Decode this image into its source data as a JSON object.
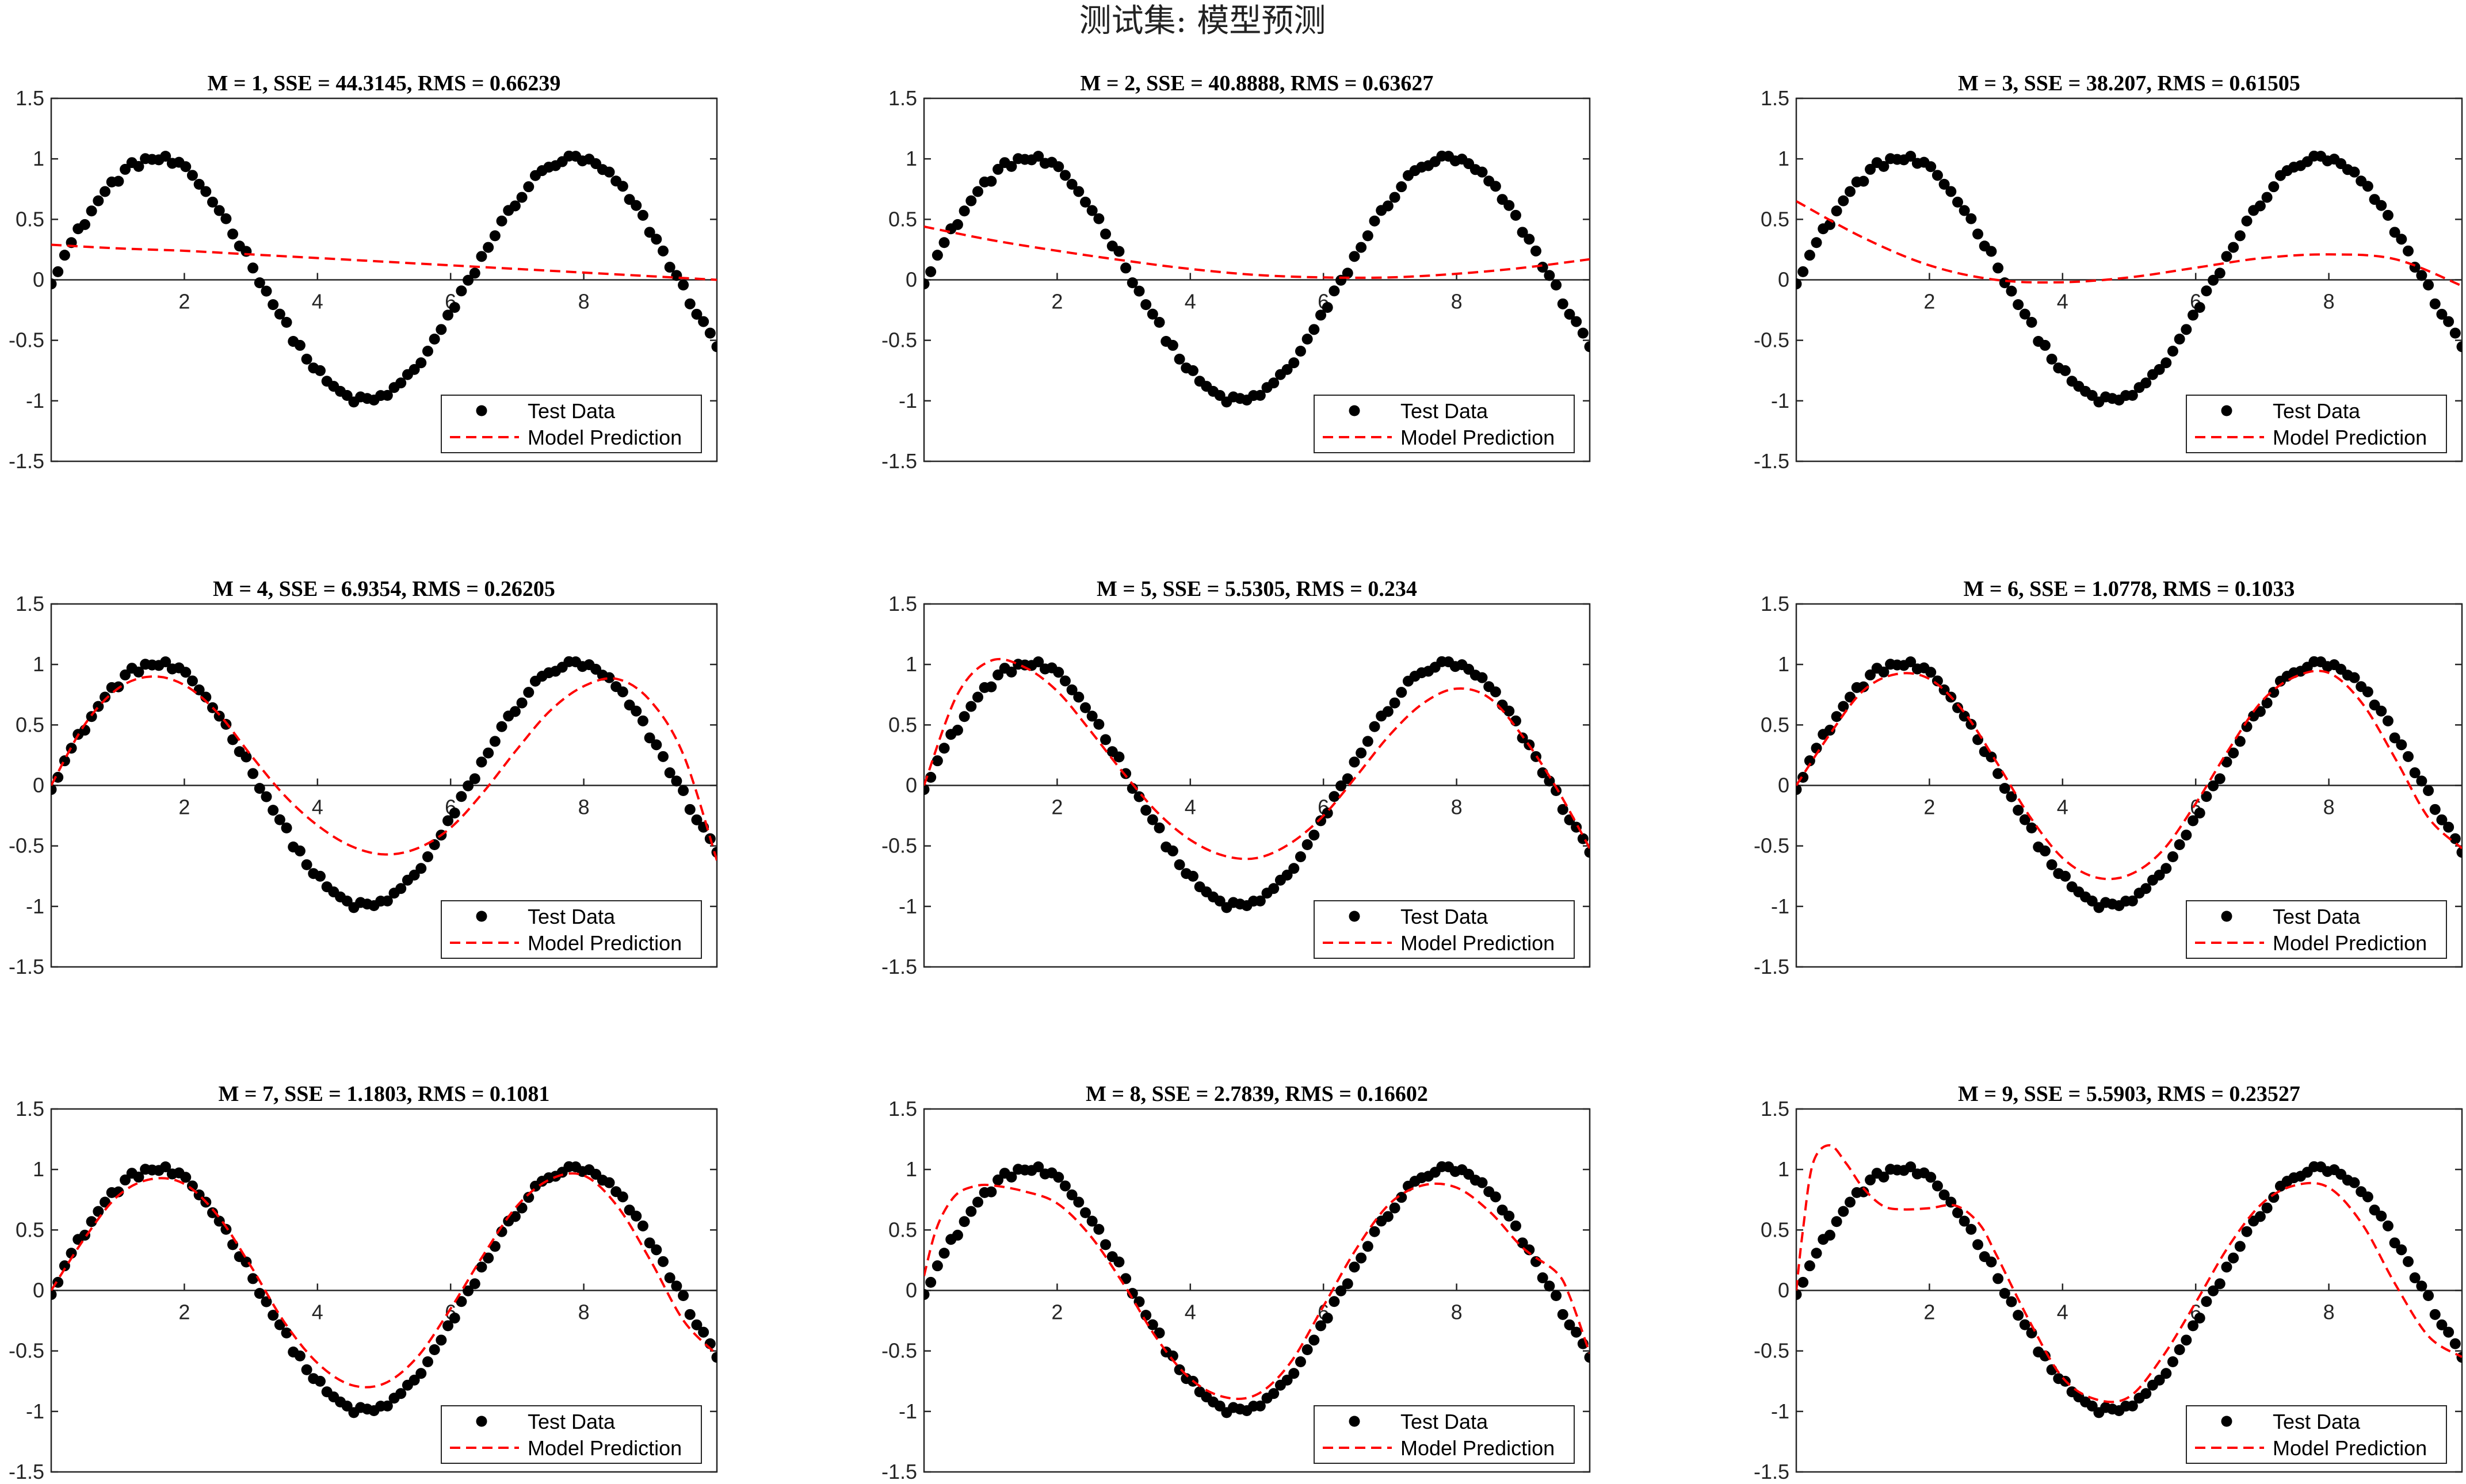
{
  "figure": {
    "suptitle": "测试集: 模型预测"
  },
  "colors": {
    "data_points": "#000000",
    "model_line": "#ff0000",
    "axes": "#262626",
    "background": "#ffffff"
  },
  "chart_data": [
    {
      "type": "scatter",
      "title": "M = 1, SSE = 44.3145, RMS = 0.66239",
      "xlabel": "",
      "ylabel": "",
      "xlim": [
        0,
        10
      ],
      "ylim": [
        -1.5,
        1.5
      ],
      "x_ticks": [
        2,
        4,
        6,
        8
      ],
      "y_ticks": [
        1.5,
        1,
        0.5,
        0,
        -0.5,
        -1,
        -1.5
      ],
      "x_ticks_text": [
        "2",
        "4",
        "6",
        "8"
      ],
      "y_ticks_text": [
        "1.5",
        "1",
        "0.5",
        "0",
        "-0.5",
        "-1",
        "-1.5"
      ],
      "legend_position": "bottom-right",
      "series": [
        {
          "name": "Test Data",
          "style": "markers",
          "x_range": [
            0,
            10
          ],
          "num_points": 100,
          "function": "sin(x) with small noise"
        },
        {
          "name": "Model Prediction",
          "style": "dashed-line",
          "x": [
            0,
            1,
            2,
            3,
            4,
            5,
            6,
            7,
            8,
            9,
            10
          ],
          "y": [
            0.29,
            0.26,
            0.24,
            0.21,
            0.18,
            0.15,
            0.12,
            0.09,
            0.06,
            0.03,
            0.0
          ]
        }
      ]
    },
    {
      "type": "scatter",
      "title": "M = 2, SSE = 40.8888, RMS = 0.63627",
      "xlabel": "",
      "ylabel": "",
      "xlim": [
        0,
        10
      ],
      "ylim": [
        -1.5,
        1.5
      ],
      "x_ticks": [
        2,
        4,
        6,
        8
      ],
      "y_ticks": [
        1.5,
        1,
        0.5,
        0,
        -0.5,
        -1,
        -1.5
      ],
      "x_ticks_text": [
        "2",
        "4",
        "6",
        "8"
      ],
      "y_ticks_text": [
        "1.5",
        "1",
        "0.5",
        "0",
        "-0.5",
        "-1",
        "-1.5"
      ],
      "legend_position": "bottom-right",
      "series": [
        {
          "name": "Test Data",
          "style": "markers",
          "x_range": [
            0,
            10
          ],
          "num_points": 100,
          "function": "sin(x) with small noise"
        },
        {
          "name": "Model Prediction",
          "style": "dashed-line",
          "x": [
            0,
            1,
            2,
            3,
            4,
            5,
            6,
            7,
            8,
            9,
            10
          ],
          "y": [
            0.44,
            0.33,
            0.24,
            0.16,
            0.09,
            0.04,
            0.02,
            0.02,
            0.05,
            0.1,
            0.17
          ]
        }
      ]
    },
    {
      "type": "scatter",
      "title": "M = 3, SSE = 38.207, RMS = 0.61505",
      "xlabel": "",
      "ylabel": "",
      "xlim": [
        0,
        10
      ],
      "ylim": [
        -1.5,
        1.5
      ],
      "x_ticks": [
        2,
        4,
        6,
        8
      ],
      "y_ticks": [
        1.5,
        1,
        0.5,
        0,
        -0.5,
        -1,
        -1.5
      ],
      "x_ticks_text": [
        "2",
        "4",
        "6",
        "8"
      ],
      "y_ticks_text": [
        "1.5",
        "1",
        "0.5",
        "0",
        "-0.5",
        "-1",
        "-1.5"
      ],
      "legend_position": "bottom-right",
      "series": [
        {
          "name": "Test Data",
          "style": "markers",
          "x_range": [
            0,
            10
          ],
          "num_points": 100,
          "function": "sin(x) with small noise"
        },
        {
          "name": "Model Prediction",
          "style": "dashed-line",
          "x": [
            0,
            1,
            2,
            3,
            4,
            5,
            6,
            7,
            8,
            9,
            10
          ],
          "y": [
            0.65,
            0.35,
            0.12,
            0.0,
            -0.02,
            0.02,
            0.1,
            0.18,
            0.21,
            0.17,
            -0.05
          ]
        }
      ]
    },
    {
      "type": "scatter",
      "title": "M = 4, SSE = 6.9354, RMS = 0.26205",
      "xlabel": "",
      "ylabel": "",
      "xlim": [
        0,
        10
      ],
      "ylim": [
        -1.5,
        1.5
      ],
      "x_ticks": [
        2,
        4,
        6,
        8
      ],
      "y_ticks": [
        1.5,
        1,
        0.5,
        0,
        -0.5,
        -1,
        -1.5
      ],
      "x_ticks_text": [
        "2",
        "4",
        "6",
        "8"
      ],
      "y_ticks_text": [
        "1.5",
        "1",
        "0.5",
        "0",
        "-0.5",
        "-1",
        "-1.5"
      ],
      "legend_position": "bottom-right",
      "series": [
        {
          "name": "Test Data",
          "style": "markers",
          "x_range": [
            0,
            10
          ],
          "num_points": 100,
          "function": "sin(x) with small noise"
        },
        {
          "name": "Model Prediction",
          "style": "dashed-line",
          "x": [
            0,
            0.5,
            1,
            1.5,
            2,
            2.5,
            3,
            3.5,
            4,
            4.5,
            5,
            5.5,
            6,
            6.5,
            7,
            7.5,
            8,
            8.5,
            9,
            9.5,
            10
          ],
          "y": [
            0.0,
            0.5,
            0.8,
            0.9,
            0.83,
            0.6,
            0.25,
            -0.08,
            -0.33,
            -0.5,
            -0.57,
            -0.52,
            -0.35,
            -0.05,
            0.3,
            0.62,
            0.82,
            0.88,
            0.7,
            0.25,
            -0.62
          ]
        }
      ]
    },
    {
      "type": "scatter",
      "title": "M = 5, SSE = 5.5305, RMS = 0.234",
      "xlabel": "",
      "ylabel": "",
      "xlim": [
        0,
        10
      ],
      "ylim": [
        -1.5,
        1.5
      ],
      "x_ticks": [
        2,
        4,
        6,
        8
      ],
      "y_ticks": [
        1.5,
        1,
        0.5,
        0,
        -0.5,
        -1,
        -1.5
      ],
      "x_ticks_text": [
        "2",
        "4",
        "6",
        "8"
      ],
      "y_ticks_text": [
        "1.5",
        "1",
        "0.5",
        "0",
        "-0.5",
        "-1",
        "-1.5"
      ],
      "legend_position": "bottom-right",
      "series": [
        {
          "name": "Test Data",
          "style": "markers",
          "x_range": [
            0,
            10
          ],
          "num_points": 100,
          "function": "sin(x) with small noise"
        },
        {
          "name": "Model Prediction",
          "style": "dashed-line",
          "x": [
            0,
            0.5,
            1,
            1.5,
            2,
            2.5,
            3,
            3.5,
            4,
            4.5,
            5,
            5.5,
            6,
            6.5,
            7,
            7.5,
            8,
            8.5,
            9,
            9.5,
            10
          ],
          "y": [
            0.0,
            0.75,
            1.03,
            0.98,
            0.78,
            0.45,
            0.1,
            -0.22,
            -0.45,
            -0.58,
            -0.6,
            -0.48,
            -0.25,
            0.08,
            0.42,
            0.68,
            0.8,
            0.72,
            0.4,
            -0.02,
            -0.52
          ]
        }
      ]
    },
    {
      "type": "scatter",
      "title": "M = 6, SSE = 1.0778, RMS = 0.1033",
      "xlabel": "",
      "ylabel": "",
      "xlim": [
        0,
        10
      ],
      "ylim": [
        -1.5,
        1.5
      ],
      "x_ticks": [
        2,
        4,
        6,
        8
      ],
      "y_ticks": [
        1.5,
        1,
        0.5,
        0,
        -0.5,
        -1,
        -1.5
      ],
      "x_ticks_text": [
        "2",
        "4",
        "6",
        "8"
      ],
      "y_ticks_text": [
        "1.5",
        "1",
        "0.5",
        "0",
        "-0.5",
        "-1",
        "-1.5"
      ],
      "legend_position": "bottom-right",
      "series": [
        {
          "name": "Test Data",
          "style": "markers",
          "x_range": [
            0,
            10
          ],
          "num_points": 100,
          "function": "sin(x) with small noise"
        },
        {
          "name": "Model Prediction",
          "style": "dashed-line",
          "x": [
            0,
            0.5,
            1,
            1.5,
            2,
            2.5,
            3,
            3.5,
            4,
            4.5,
            5,
            5.5,
            6,
            6.5,
            7,
            7.5,
            8,
            8.5,
            9,
            9.5,
            10
          ],
          "y": [
            0.0,
            0.42,
            0.78,
            0.92,
            0.88,
            0.62,
            0.2,
            -0.25,
            -0.6,
            -0.76,
            -0.74,
            -0.54,
            -0.15,
            0.3,
            0.7,
            0.9,
            0.93,
            0.68,
            0.22,
            -0.27,
            -0.52
          ]
        }
      ]
    },
    {
      "type": "scatter",
      "title": "M = 7, SSE = 1.1803, RMS = 0.1081",
      "xlabel": "",
      "ylabel": "",
      "xlim": [
        0,
        10
      ],
      "ylim": [
        -1.5,
        1.5
      ],
      "x_ticks": [
        2,
        4,
        6,
        8
      ],
      "y_ticks": [
        1.5,
        1,
        0.5,
        0,
        -0.5,
        -1,
        -1.5
      ],
      "x_ticks_text": [
        "2",
        "4",
        "6",
        "8"
      ],
      "y_ticks_text": [
        "1.5",
        "1",
        "0.5",
        "0",
        "-0.5",
        "-1",
        "-1.5"
      ],
      "legend_position": "bottom-right",
      "series": [
        {
          "name": "Test Data",
          "style": "markers",
          "x_range": [
            0,
            10
          ],
          "num_points": 100,
          "function": "sin(x) with small noise"
        },
        {
          "name": "Model Prediction",
          "style": "dashed-line",
          "x": [
            0,
            0.5,
            1,
            1.5,
            2,
            2.5,
            3,
            3.5,
            4,
            4.5,
            5,
            5.5,
            6,
            6.5,
            7,
            7.5,
            8,
            8.5,
            9,
            9.5,
            10
          ],
          "y": [
            0.0,
            0.43,
            0.78,
            0.92,
            0.88,
            0.62,
            0.2,
            -0.26,
            -0.6,
            -0.78,
            -0.77,
            -0.55,
            -0.15,
            0.3,
            0.7,
            0.92,
            0.95,
            0.7,
            0.25,
            -0.25,
            -0.53
          ]
        }
      ]
    },
    {
      "type": "scatter",
      "title": "M = 8, SSE = 2.7839, RMS = 0.16602",
      "xlabel": "",
      "ylabel": "",
      "xlim": [
        0,
        10
      ],
      "ylim": [
        -1.5,
        1.5
      ],
      "x_ticks": [
        2,
        4,
        6,
        8
      ],
      "y_ticks": [
        1.5,
        1,
        0.5,
        0,
        -0.5,
        -1,
        -1.5
      ],
      "x_ticks_text": [
        "2",
        "4",
        "6",
        "8"
      ],
      "y_ticks_text": [
        "1.5",
        "1",
        "0.5",
        "0",
        "-0.5",
        "-1",
        "-1.5"
      ],
      "legend_position": "bottom-right",
      "series": [
        {
          "name": "Test Data",
          "style": "markers",
          "x_range": [
            0,
            10
          ],
          "num_points": 100,
          "function": "sin(x) with small noise"
        },
        {
          "name": "Model Prediction",
          "style": "dashed-line",
          "x": [
            0,
            0.15,
            0.3,
            0.5,
            0.75,
            1,
            1.5,
            2,
            2.5,
            3,
            3.5,
            4,
            4.5,
            5,
            5.5,
            6,
            6.5,
            7,
            7.5,
            8,
            8.5,
            9,
            9.5,
            9.7,
            10
          ],
          "y": [
            0.12,
            0.45,
            0.65,
            0.8,
            0.86,
            0.87,
            0.82,
            0.72,
            0.45,
            0.05,
            -0.4,
            -0.73,
            -0.88,
            -0.86,
            -0.6,
            -0.13,
            0.35,
            0.72,
            0.87,
            0.85,
            0.65,
            0.35,
            0.15,
            -0.05,
            -0.52
          ]
        }
      ]
    },
    {
      "type": "scatter",
      "title": "M = 9, SSE = 5.5903, RMS = 0.23527",
      "xlabel": "",
      "ylabel": "",
      "xlim": [
        0,
        10
      ],
      "ylim": [
        -1.5,
        1.5
      ],
      "x_ticks": [
        2,
        4,
        6,
        8
      ],
      "y_ticks": [
        1.5,
        1,
        0.5,
        0,
        -0.5,
        -1,
        -1.5
      ],
      "x_ticks_text": [
        "2",
        "4",
        "6",
        "8"
      ],
      "y_ticks_text": [
        "1.5",
        "1",
        "0.5",
        "0",
        "-0.5",
        "-1",
        "-1.5"
      ],
      "legend_position": "bottom-right",
      "series": [
        {
          "name": "Test Data",
          "style": "markers",
          "x_range": [
            0,
            10
          ],
          "num_points": 100,
          "function": "sin(x) with small noise"
        },
        {
          "name": "Model Prediction",
          "style": "dashed-line",
          "x": [
            0,
            0.1,
            0.25,
            0.5,
            0.75,
            1,
            1.3,
            1.6,
            2,
            2.4,
            2.75,
            3,
            3.5,
            4,
            4.5,
            5,
            5.5,
            6,
            6.5,
            7,
            7.5,
            8,
            8.5,
            9,
            9.5,
            10
          ],
          "y": [
            0.0,
            0.5,
            1.05,
            1.2,
            1.05,
            0.85,
            0.7,
            0.67,
            0.68,
            0.7,
            0.55,
            0.3,
            -0.25,
            -0.72,
            -0.9,
            -0.88,
            -0.55,
            -0.1,
            0.37,
            0.72,
            0.87,
            0.85,
            0.55,
            0.05,
            -0.38,
            -0.55
          ]
        }
      ]
    }
  ]
}
